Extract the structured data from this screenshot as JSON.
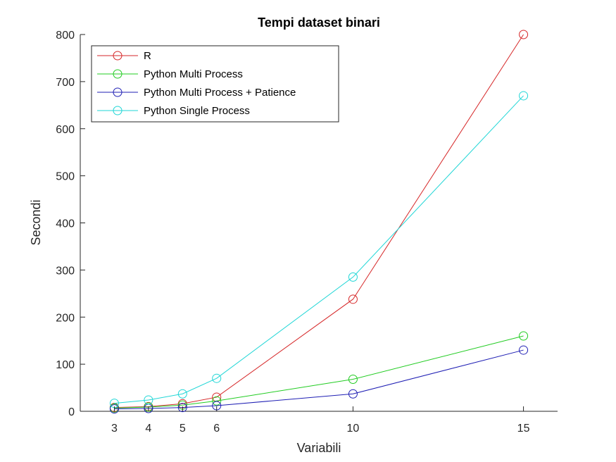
{
  "chart_data": {
    "type": "line",
    "title": "Tempi dataset binari",
    "xlabel": "Variabili",
    "ylabel": "Secondi",
    "x": [
      3,
      4,
      5,
      6,
      10,
      15
    ],
    "xticks": [
      "3",
      "4",
      "5",
      "6",
      "10",
      "15"
    ],
    "yticks": [
      "0",
      "100",
      "200",
      "300",
      "400",
      "500",
      "600",
      "700",
      "800"
    ],
    "xlim": [
      2,
      16
    ],
    "ylim": [
      0,
      800
    ],
    "grid": false,
    "legend_position": "top-left",
    "marker": "circle",
    "series": [
      {
        "name": "R",
        "color": "#d62728",
        "values": [
          8,
          10,
          16,
          30,
          238,
          800
        ]
      },
      {
        "name": "Python Multi Process",
        "color": "#22cc22",
        "values": [
          7,
          9,
          13,
          22,
          68,
          160
        ]
      },
      {
        "name": "Python Multi Process + Patience",
        "color": "#1f1fb4",
        "values": [
          5,
          6,
          8,
          12,
          37,
          130
        ]
      },
      {
        "name": "Python Single Process",
        "color": "#1fd6d6",
        "values": [
          17,
          24,
          37,
          70,
          285,
          670
        ]
      }
    ]
  }
}
